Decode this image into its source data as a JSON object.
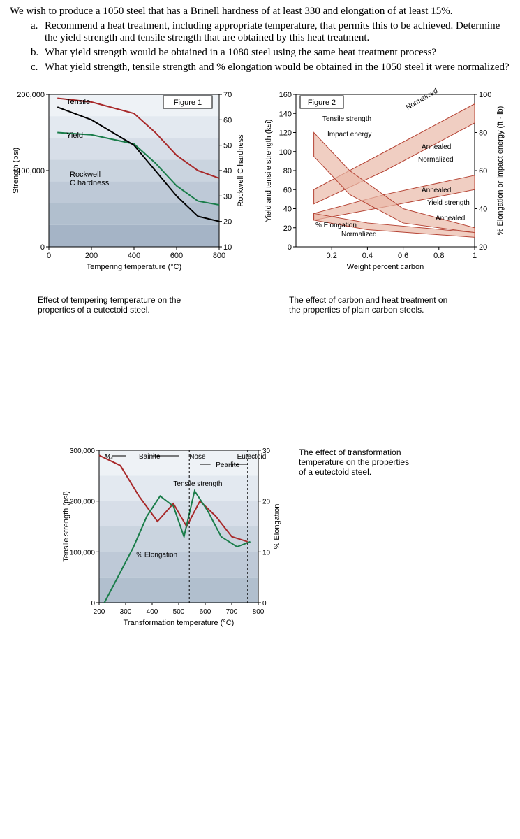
{
  "question": {
    "intro": "We wish to produce a 1050 steel that has a Brinell hardness of at least 330 and elongation of at least 15%.",
    "items": [
      {
        "label": "a.",
        "text": "Recommend a heat treatment, including appropriate temperature, that permits this to be achieved. Determine the yield strength and tensile strength that are obtained by this heat treatment."
      },
      {
        "label": "b.",
        "text": "What yield strength would be obtained in a 1080 steel using the same heat treatment process?"
      },
      {
        "label": "c.",
        "text": "What yield strength, tensile strength and % elongation would be obtained in the 1050 steel it were normalized?"
      }
    ]
  },
  "fig1": {
    "title": "Figure 1",
    "caption": "Effect of tempering temperature on the properties of a eutectoid steel.",
    "xaxis": {
      "label": "Tempering temperature (°C)",
      "min": 0,
      "max": 800,
      "ticks": [
        0,
        200,
        400,
        600,
        800
      ]
    },
    "yleft": {
      "label": "Strength (psi)",
      "min": 0,
      "max": 200000,
      "ticks": [
        0,
        100000,
        200000
      ]
    },
    "yright": {
      "label": "Rockwell C hardness",
      "min": 10,
      "max": 70,
      "ticks": [
        10,
        20,
        30,
        40,
        50,
        60,
        70
      ]
    },
    "curves": {
      "tensile": {
        "label": "Tensile",
        "color": "#a8292a",
        "points": [
          [
            40,
            195000
          ],
          [
            200,
            190000
          ],
          [
            400,
            175000
          ],
          [
            500,
            150000
          ],
          [
            600,
            120000
          ],
          [
            700,
            100000
          ],
          [
            800,
            90000
          ]
        ]
      },
      "yield": {
        "label": "Yield",
        "color": "#1a7d4a",
        "points": [
          [
            40,
            150000
          ],
          [
            200,
            147000
          ],
          [
            400,
            135000
          ],
          [
            500,
            110000
          ],
          [
            600,
            80000
          ],
          [
            700,
            60000
          ],
          [
            800,
            55000
          ]
        ]
      },
      "rockwell": {
        "label": "Rockwell\nC hardness",
        "color": "#000000",
        "points": [
          [
            40,
            65
          ],
          [
            200,
            60
          ],
          [
            400,
            50
          ],
          [
            500,
            40
          ],
          [
            600,
            30
          ],
          [
            700,
            22
          ],
          [
            800,
            20
          ]
        ]
      }
    },
    "bg_bands": [
      "#eef2f6",
      "#e3e9f0",
      "#d7dee8",
      "#cad4df",
      "#bec9d7",
      "#b1bfce",
      "#a5b4c6"
    ]
  },
  "fig2": {
    "title": "Figure 2",
    "caption": "The effect of carbon and heat treatment on the properties of plain carbon steels.",
    "xaxis": {
      "label": "Weight percent carbon",
      "min": 0,
      "max": 1.0,
      "ticks": [
        0.2,
        0.4,
        0.6,
        0.8,
        1.0
      ]
    },
    "yleft": {
      "label": "Yield and tensile strength (ksi)",
      "min": 0,
      "max": 160,
      "ticks": [
        0,
        20,
        40,
        60,
        80,
        100,
        120,
        140,
        160
      ]
    },
    "yright": {
      "label": "% Elongation or impact energy (ft · lb)",
      "min": 20,
      "max": 100,
      "ticks": [
        20,
        40,
        60,
        80,
        100
      ]
    },
    "region_labels": [
      "Tensile strength",
      "Normalized",
      "Impact energy",
      "Annealed",
      "Normalized",
      "Annealed",
      "Yield strength",
      "Annealed",
      "% Elongation",
      "Normalized"
    ],
    "band_color": "#e9b9a8",
    "line_color": "#b54334"
  },
  "fig3": {
    "caption": "The effect of transformation temperature on the properties of a eutectoid steel.",
    "xaxis": {
      "label": "Transformation temperature (°C)",
      "min": 200,
      "max": 800,
      "ticks": [
        200,
        300,
        400,
        500,
        600,
        700,
        800
      ]
    },
    "yleft": {
      "label": "Tensile strength (psi)",
      "min": 0,
      "max": 300000,
      "ticks": [
        0,
        100000,
        200000,
        300000
      ]
    },
    "yright": {
      "label": "% Elongation",
      "min": 0,
      "max": 30,
      "ticks": [
        0,
        10,
        20,
        30
      ]
    },
    "top_labels": {
      "ms": "Mₛ",
      "bainite": "Bainite",
      "nose": "Nose",
      "eutectoid": "Eutectoid",
      "pearlite": "Pearlite"
    },
    "curves": {
      "tensile": {
        "label": "Tensile strength",
        "color": "#a8292a",
        "points": [
          [
            200,
            290000
          ],
          [
            280,
            270000
          ],
          [
            350,
            210000
          ],
          [
            420,
            160000
          ],
          [
            480,
            195000
          ],
          [
            530,
            150000
          ],
          [
            580,
            200000
          ],
          [
            640,
            170000
          ],
          [
            700,
            130000
          ],
          [
            760,
            120000
          ]
        ]
      },
      "elong": {
        "label": "% Elongation",
        "color": "#1a7d4a",
        "points": [
          [
            220,
            0
          ],
          [
            280,
            6
          ],
          [
            330,
            11
          ],
          [
            380,
            17
          ],
          [
            430,
            21
          ],
          [
            480,
            19
          ],
          [
            520,
            13
          ],
          [
            560,
            22
          ],
          [
            610,
            18
          ],
          [
            660,
            13
          ],
          [
            720,
            11
          ],
          [
            770,
            12
          ]
        ]
      }
    },
    "bg_bands": [
      "#eef2f6",
      "#e3e9f0",
      "#d7dee8",
      "#cad4df",
      "#bec9d7",
      "#b1bfce"
    ]
  }
}
